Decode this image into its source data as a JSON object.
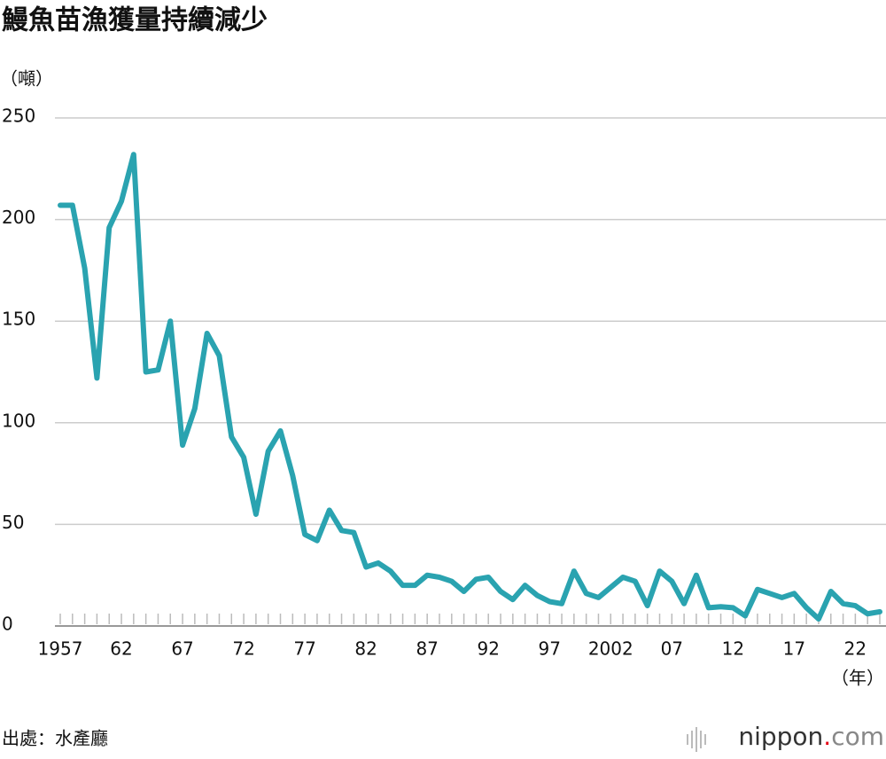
{
  "chart_data": {
    "type": "line",
    "title": "鰻魚苗漁獲量持續減少",
    "y_label": "（噸）",
    "x_label": "（年）",
    "x": [
      1957,
      1958,
      1959,
      1960,
      1961,
      1962,
      1963,
      1964,
      1965,
      1966,
      1967,
      1968,
      1969,
      1970,
      1971,
      1972,
      1973,
      1974,
      1975,
      1976,
      1977,
      1978,
      1979,
      1980,
      1981,
      1982,
      1983,
      1984,
      1985,
      1986,
      1987,
      1988,
      1989,
      1990,
      1991,
      1992,
      1993,
      1994,
      1995,
      1996,
      1997,
      1998,
      1999,
      2000,
      2001,
      2002,
      2003,
      2004,
      2005,
      2006,
      2007,
      2008,
      2009,
      2010,
      2011,
      2012,
      2013,
      2014,
      2015,
      2016,
      2017,
      2018,
      2019,
      2020,
      2021,
      2022,
      2023,
      2024
    ],
    "series": [
      {
        "name": "漁獲量",
        "color": "#2aa3b0",
        "values": [
          207,
          207,
          176,
          122,
          196,
          209,
          232,
          125,
          126,
          150,
          89,
          107,
          144,
          133,
          93,
          83,
          55,
          86,
          96,
          74,
          45,
          42,
          57,
          47,
          46,
          29,
          31,
          27,
          20,
          20,
          25,
          24,
          22,
          17,
          23,
          24,
          17,
          13,
          20,
          15,
          12,
          11,
          27,
          16,
          14,
          19,
          24,
          22,
          10,
          27,
          22,
          11,
          25,
          9,
          9.5,
          9,
          5,
          18,
          16,
          14,
          16,
          9,
          3.5,
          17,
          11,
          10,
          6,
          7
        ]
      }
    ],
    "xlim": [
      1957,
      2024
    ],
    "xticks": [
      1957,
      {
        "value": 1962,
        "label": "62"
      },
      {
        "value": 1967,
        "label": "67"
      },
      {
        "value": 1972,
        "label": "72"
      },
      {
        "value": 1977,
        "label": "77"
      },
      {
        "value": 1982,
        "label": "82"
      },
      {
        "value": 1987,
        "label": "87"
      },
      {
        "value": 1992,
        "label": "92"
      },
      {
        "value": 1997,
        "label": "97"
      },
      2002,
      {
        "value": 2007,
        "label": "07"
      },
      {
        "value": 2012,
        "label": "12"
      },
      {
        "value": 2017,
        "label": "17"
      },
      {
        "value": 2022,
        "label": "22"
      }
    ],
    "ylim": [
      0,
      250
    ],
    "yticks": [
      0,
      50,
      100,
      150,
      200,
      250
    ],
    "grid": true
  },
  "source": "出處：水產廳",
  "logo": [
    "nippon",
    ".",
    "com"
  ]
}
